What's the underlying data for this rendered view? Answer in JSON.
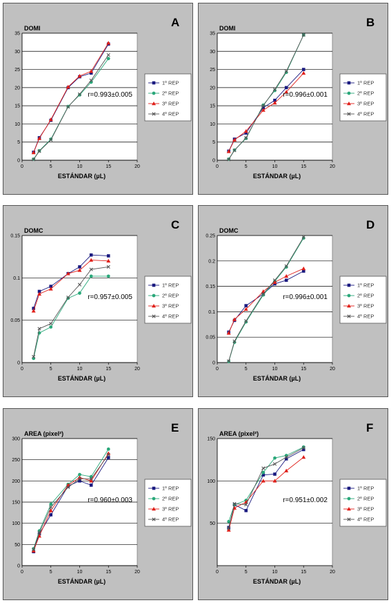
{
  "legend": [
    "1º REP",
    "2º REP",
    "3º REP",
    "4º REP"
  ],
  "series_colors": [
    "#1a1a80",
    "#2aa87a",
    "#e0201a",
    "#555555"
  ],
  "series_markers": [
    "square",
    "circle",
    "triangle",
    "cross"
  ],
  "chart_data": [
    {
      "type": "line",
      "panel": "A",
      "title": "DOMI",
      "xlabel": "ESTÁNDAR (µL)",
      "xlim": [
        0,
        20
      ],
      "xticks": [
        0,
        5,
        10,
        15,
        20
      ],
      "ylim": [
        0,
        35
      ],
      "yticks": [
        0,
        5,
        10,
        15,
        20,
        25,
        30,
        35
      ],
      "ytick_labels": [
        "0",
        "5",
        "10",
        "15",
        "20",
        "25",
        "30",
        "35"
      ],
      "grid": "horizontal",
      "legend_position": "right",
      "annotation": "r=0.993±0.005",
      "x": [
        2,
        3,
        5,
        8,
        10,
        12,
        15
      ],
      "series": [
        {
          "name": "1º REP",
          "values": [
            2.2,
            6.2,
            11,
            20,
            23,
            24,
            32
          ]
        },
        {
          "name": "2º REP",
          "values": [
            0.3,
            2.6,
            5.8,
            14.8,
            18,
            21.5,
            28
          ]
        },
        {
          "name": "3º REP",
          "values": [
            2.1,
            6.0,
            11.2,
            20.2,
            23.2,
            24.5,
            32.3
          ]
        },
        {
          "name": "4º REP",
          "values": [
            0.2,
            2.5,
            5.6,
            14.7,
            18.2,
            22,
            29
          ]
        }
      ]
    },
    {
      "type": "line",
      "panel": "B",
      "title": "DOMI",
      "xlabel": "ESTÁNDAR (µL)",
      "xlim": [
        0,
        20
      ],
      "xticks": [
        0,
        5,
        10,
        15,
        20
      ],
      "ylim": [
        0,
        35
      ],
      "yticks": [
        0,
        5,
        10,
        15,
        20,
        25,
        30,
        35
      ],
      "ytick_labels": [
        "0",
        "5",
        "10",
        "15",
        "20",
        "25",
        "30",
        "35"
      ],
      "grid": "horizontal",
      "legend_position": "right",
      "annotation": "r=0.996±0.001",
      "x": [
        2,
        3,
        5,
        8,
        10,
        12,
        15
      ],
      "series": [
        {
          "name": "1º REP",
          "values": [
            2.5,
            5.8,
            7.5,
            14.5,
            16.5,
            20,
            25
          ]
        },
        {
          "name": "2º REP",
          "values": [
            0.3,
            2.8,
            6.0,
            15.2,
            19.2,
            24.2,
            34.5
          ]
        },
        {
          "name": "3º REP",
          "values": [
            2.4,
            5.6,
            8.0,
            13.8,
            15.8,
            18.8,
            24
          ]
        },
        {
          "name": "4º REP",
          "values": [
            0.2,
            2.7,
            6.2,
            15,
            19.5,
            24.5,
            34.5
          ]
        }
      ]
    },
    {
      "type": "line",
      "panel": "C",
      "title": "DOMC",
      "xlabel": "ESTÁNDAR (µL)",
      "xlim": [
        0,
        20
      ],
      "xticks": [
        0,
        5,
        10,
        15,
        20
      ],
      "ylim": [
        0,
        0.15
      ],
      "yticks": [
        0,
        0.05,
        0.1,
        0.15
      ],
      "ytick_labels": [
        "0",
        "0.05",
        "0.1",
        "0.15"
      ],
      "grid": "horizontal",
      "legend_position": "right",
      "annotation": "r=0.957±0.005",
      "x": [
        2,
        3,
        5,
        8,
        10,
        12,
        15
      ],
      "series": [
        {
          "name": "1º REP",
          "values": [
            0.064,
            0.084,
            0.09,
            0.105,
            0.113,
            0.127,
            0.126
          ]
        },
        {
          "name": "2º REP",
          "values": [
            0.005,
            0.035,
            0.042,
            0.076,
            0.082,
            0.102,
            0.102
          ]
        },
        {
          "name": "3º REP",
          "values": [
            0.061,
            0.081,
            0.087,
            0.105,
            0.109,
            0.121,
            0.12
          ]
        },
        {
          "name": "4º REP",
          "values": [
            0.007,
            0.04,
            0.046,
            0.077,
            0.092,
            0.11,
            0.113
          ]
        }
      ]
    },
    {
      "type": "line",
      "panel": "D",
      "title": "DOMC",
      "xlabel": "ESTÁNDAR (µL)",
      "xlim": [
        0,
        20
      ],
      "xticks": [
        0,
        5,
        10,
        15,
        20
      ],
      "ylim": [
        0,
        0.25
      ],
      "yticks": [
        0,
        0.05,
        0.1,
        0.15,
        0.2,
        0.25
      ],
      "ytick_labels": [
        "0",
        "0.05",
        "0.1",
        "0.15",
        "0.2",
        "0.25"
      ],
      "grid": "horizontal",
      "legend_position": "right",
      "annotation": "r=0.996±0.001",
      "x": [
        2,
        3,
        5,
        8,
        10,
        12,
        15
      ],
      "series": [
        {
          "name": "1º REP",
          "values": [
            0.06,
            0.083,
            0.112,
            0.135,
            0.155,
            0.162,
            0.18
          ]
        },
        {
          "name": "2º REP",
          "values": [
            0.002,
            0.04,
            0.08,
            0.133,
            0.16,
            0.188,
            0.245
          ]
        },
        {
          "name": "3º REP",
          "values": [
            0.058,
            0.085,
            0.105,
            0.14,
            0.158,
            0.17,
            0.185
          ]
        },
        {
          "name": "4º REP",
          "values": [
            0.003,
            0.042,
            0.082,
            0.135,
            0.162,
            0.19,
            0.247
          ]
        }
      ]
    },
    {
      "type": "line",
      "panel": "E",
      "title": "AREA (pixel²)",
      "xlabel": "ESTÁNDAR (µL)",
      "xlim": [
        0,
        20
      ],
      "xticks": [
        0,
        5,
        10,
        15,
        20
      ],
      "ylim": [
        0,
        300
      ],
      "yticks": [
        0,
        50,
        100,
        150,
        200,
        250,
        300
      ],
      "ytick_labels": [
        "0",
        "50",
        "100",
        "150",
        "200",
        "250",
        "300"
      ],
      "grid": "horizontal",
      "legend_position": "right",
      "annotation": "r=0.960±0.003",
      "x": [
        2,
        3,
        5,
        8,
        10,
        12,
        15
      ],
      "series": [
        {
          "name": "1º REP",
          "values": [
            33,
            75,
            120,
            188,
            200,
            190,
            255
          ]
        },
        {
          "name": "2º REP",
          "values": [
            40,
            82,
            145,
            192,
            215,
            210,
            275
          ]
        },
        {
          "name": "3º REP",
          "values": [
            35,
            70,
            130,
            190,
            208,
            200,
            265
          ]
        },
        {
          "name": "4º REP",
          "values": [
            38,
            78,
            138,
            185,
            205,
            205,
            262
          ]
        }
      ]
    },
    {
      "type": "line",
      "panel": "F",
      "title": "AREA (pixel²)",
      "xlabel": "ESTÁNDAR (µL)",
      "xlim": [
        0,
        20
      ],
      "xticks": [
        0,
        5,
        10,
        15,
        20
      ],
      "ylim": [
        0,
        150
      ],
      "yticks": [
        50,
        100,
        150
      ],
      "ytick_labels": [
        "50",
        "100",
        "150"
      ],
      "grid": "horizontal",
      "legend_position": "right",
      "annotation": "r=0.951±0.002",
      "x": [
        2,
        3,
        5,
        8,
        10,
        12,
        15
      ],
      "series": [
        {
          "name": "1º REP",
          "values": [
            45,
            72,
            65,
            107,
            108,
            126,
            137
          ]
        },
        {
          "name": "2º REP",
          "values": [
            52,
            72,
            77,
            110,
            127,
            130,
            140
          ]
        },
        {
          "name": "3º REP",
          "values": [
            42,
            68,
            75,
            100,
            100,
            112,
            128
          ]
        },
        {
          "name": "4º REP",
          "values": [
            44,
            73,
            72,
            115,
            120,
            128,
            139
          ]
        }
      ]
    }
  ]
}
